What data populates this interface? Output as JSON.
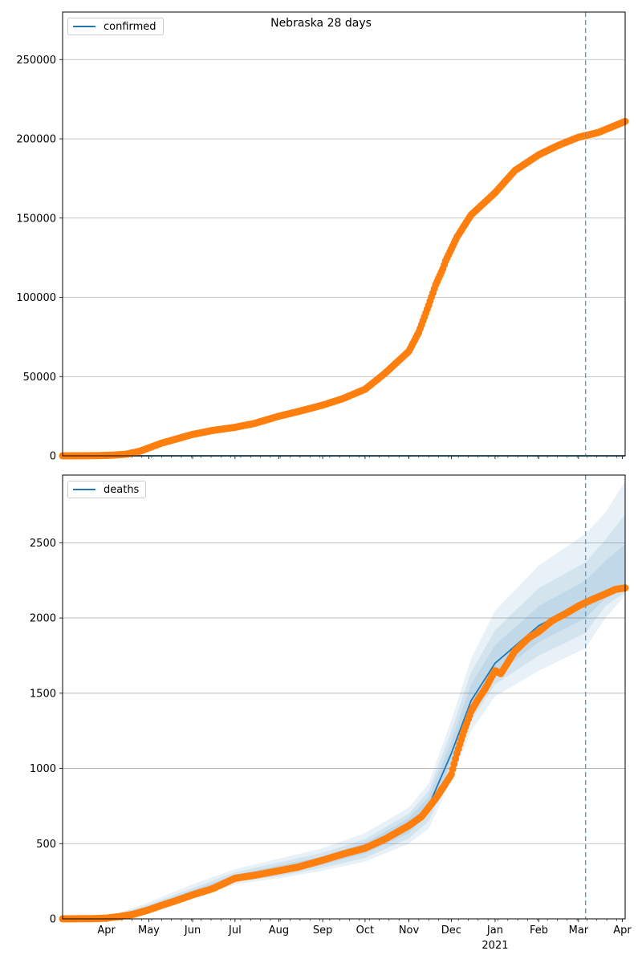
{
  "figure": {
    "title": "Nebraska 28 days"
  },
  "chart_data": [
    {
      "type": "line",
      "title": "Nebraska 28 days",
      "legend": [
        "confirmed"
      ],
      "legend_position": "top-left",
      "grid": "horizontal",
      "x_start": "2020-03-01",
      "x_end": "2021-04-03",
      "ylim": [
        0,
        280000
      ],
      "yticks": [
        0,
        50000,
        100000,
        150000,
        200000,
        250000
      ],
      "forecast_line_date": "2021-03-06",
      "colors": {
        "model": "#1f77b4",
        "observed": "#ff7f0e"
      },
      "series": [
        {
          "name": "confirmed",
          "kind": "model-line",
          "points": [
            [
              "2020-03-01",
              0
            ],
            [
              "2021-04-03",
              0
            ]
          ]
        },
        {
          "kind": "observed-points",
          "points": [
            [
              "2020-03-01",
              0
            ],
            [
              "2020-03-25",
              100
            ],
            [
              "2020-04-05",
              400
            ],
            [
              "2020-04-15",
              1000
            ],
            [
              "2020-04-25",
              3000
            ],
            [
              "2020-05-01",
              5000
            ],
            [
              "2020-05-10",
              8000
            ],
            [
              "2020-05-20",
              10500
            ],
            [
              "2020-06-01",
              13500
            ],
            [
              "2020-06-15",
              16000
            ],
            [
              "2020-07-01",
              18000
            ],
            [
              "2020-07-15",
              20500
            ],
            [
              "2020-08-01",
              25000
            ],
            [
              "2020-08-15",
              28000
            ],
            [
              "2020-09-01",
              32000
            ],
            [
              "2020-09-15",
              36000
            ],
            [
              "2020-10-01",
              42000
            ],
            [
              "2020-10-15",
              52000
            ],
            [
              "2020-11-01",
              66000
            ],
            [
              "2020-11-08",
              78000
            ],
            [
              "2020-11-15",
              95000
            ],
            [
              "2020-11-20",
              108000
            ],
            [
              "2020-11-25",
              118000
            ],
            [
              "2020-11-27",
              123000
            ],
            [
              "2020-12-05",
              138000
            ],
            [
              "2020-12-15",
              152000
            ],
            [
              "2021-01-01",
              166000
            ],
            [
              "2021-01-15",
              180000
            ],
            [
              "2021-02-01",
              190000
            ],
            [
              "2021-02-15",
              196000
            ],
            [
              "2021-03-01",
              201000
            ],
            [
              "2021-03-15",
              204000
            ],
            [
              "2021-04-03",
              211000
            ]
          ]
        }
      ]
    },
    {
      "type": "line",
      "legend": [
        "deaths"
      ],
      "legend_position": "top-left",
      "grid": "horizontal",
      "x_start": "2020-03-01",
      "x_end": "2021-04-03",
      "ylim": [
        0,
        2950
      ],
      "yticks": [
        0,
        500,
        1000,
        1500,
        2000,
        2500
      ],
      "xticks": [
        {
          "date": "2020-04-01",
          "label": "Apr"
        },
        {
          "date": "2020-05-01",
          "label": "May"
        },
        {
          "date": "2020-06-01",
          "label": "Jun"
        },
        {
          "date": "2020-07-01",
          "label": "Jul"
        },
        {
          "date": "2020-08-01",
          "label": "Aug"
        },
        {
          "date": "2020-09-01",
          "label": "Sep"
        },
        {
          "date": "2020-10-01",
          "label": "Oct"
        },
        {
          "date": "2020-11-01",
          "label": "Nov"
        },
        {
          "date": "2020-12-01",
          "label": "Dec"
        },
        {
          "date": "2021-01-01",
          "label": "Jan"
        },
        {
          "date": "2021-02-01",
          "label": "Feb"
        },
        {
          "date": "2021-03-01",
          "label": "Mar"
        },
        {
          "date": "2021-04-01",
          "label": "Apr"
        }
      ],
      "xtick_year": {
        "date": "2021-01-01",
        "label": "2021"
      },
      "forecast_line_date": "2021-03-06",
      "colors": {
        "model": "#1f77b4",
        "observed": "#ff7f0e"
      },
      "series": [
        {
          "name": "deaths",
          "kind": "model-line",
          "points": [
            [
              "2020-03-01",
              0
            ],
            [
              "2020-04-01",
              5
            ],
            [
              "2020-05-01",
              75
            ],
            [
              "2020-06-01",
              170
            ],
            [
              "2020-07-01",
              275
            ],
            [
              "2020-08-01",
              330
            ],
            [
              "2020-09-01",
              390
            ],
            [
              "2020-10-01",
              470
            ],
            [
              "2020-11-01",
              620
            ],
            [
              "2020-11-15",
              750
            ],
            [
              "2020-12-01",
              1100
            ],
            [
              "2020-12-15",
              1450
            ],
            [
              "2021-01-01",
              1700
            ],
            [
              "2021-02-01",
              1950
            ],
            [
              "2021-03-06",
              2110
            ]
          ]
        },
        {
          "kind": "uncertainty-bands",
          "dates": [
            "2020-03-01",
            "2020-04-01",
            "2020-05-01",
            "2020-06-01",
            "2020-07-01",
            "2020-08-01",
            "2020-09-01",
            "2020-10-01",
            "2020-11-01",
            "2020-11-15",
            "2020-12-01",
            "2020-12-15",
            "2021-01-01",
            "2021-02-01",
            "2021-03-06",
            "2021-03-20",
            "2021-04-03"
          ],
          "bands": [
            {
              "lower": [
                0,
                2,
                50,
                130,
                230,
                270,
                320,
                380,
                500,
                600,
                920,
                1250,
                1480,
                1650,
                1800,
                2000,
                2150
              ],
              "upper": [
                0,
                10,
                110,
                230,
                330,
                400,
                470,
                570,
                740,
                900,
                1320,
                1730,
                2050,
                2350,
                2560,
                2700,
                2910
              ]
            },
            {
              "lower": [
                0,
                3,
                60,
                145,
                245,
                285,
                340,
                405,
                535,
                650,
                980,
                1320,
                1560,
                1750,
                1900,
                2080,
                2170
              ],
              "upper": [
                0,
                8,
                95,
                205,
                310,
                375,
                440,
                530,
                700,
                850,
                1250,
                1640,
                1920,
                2200,
                2370,
                2520,
                2690
              ]
            },
            {
              "lower": [
                0,
                4,
                65,
                155,
                258,
                305,
                360,
                435,
                570,
                700,
                1040,
                1380,
                1620,
                1840,
                2000,
                2130,
                2190
              ],
              "upper": [
                0,
                7,
                85,
                190,
                292,
                355,
                415,
                505,
                670,
                810,
                1180,
                1560,
                1820,
                2080,
                2250,
                2380,
                2490
              ]
            }
          ]
        },
        {
          "kind": "observed-points",
          "points": [
            [
              "2020-03-01",
              0
            ],
            [
              "2020-03-25",
              2
            ],
            [
              "2020-04-01",
              5
            ],
            [
              "2020-04-10",
              15
            ],
            [
              "2020-04-20",
              30
            ],
            [
              "2020-05-01",
              60
            ],
            [
              "2020-05-10",
              90
            ],
            [
              "2020-05-20",
              120
            ],
            [
              "2020-06-01",
              160
            ],
            [
              "2020-06-15",
              200
            ],
            [
              "2020-07-01",
              270
            ],
            [
              "2020-07-15",
              290
            ],
            [
              "2020-08-01",
              320
            ],
            [
              "2020-08-15",
              345
            ],
            [
              "2020-09-01",
              390
            ],
            [
              "2020-09-15",
              430
            ],
            [
              "2020-10-01",
              470
            ],
            [
              "2020-10-15",
              530
            ],
            [
              "2020-11-01",
              620
            ],
            [
              "2020-11-10",
              680
            ],
            [
              "2020-11-20",
              800
            ],
            [
              "2020-11-27",
              900
            ],
            [
              "2020-12-01",
              960
            ],
            [
              "2020-12-05",
              1100
            ],
            [
              "2020-12-10",
              1250
            ],
            [
              "2020-12-15",
              1380
            ],
            [
              "2020-12-20",
              1460
            ],
            [
              "2020-12-25",
              1530
            ],
            [
              "2021-01-01",
              1650
            ],
            [
              "2021-01-05",
              1630
            ],
            [
              "2021-01-15",
              1780
            ],
            [
              "2021-01-25",
              1870
            ],
            [
              "2021-02-01",
              1910
            ],
            [
              "2021-02-10",
              1980
            ],
            [
              "2021-02-20",
              2030
            ],
            [
              "2021-03-01",
              2080
            ],
            [
              "2021-03-10",
              2120
            ],
            [
              "2021-03-20",
              2160
            ],
            [
              "2021-03-27",
              2190
            ],
            [
              "2021-04-03",
              2200
            ]
          ]
        }
      ]
    }
  ]
}
